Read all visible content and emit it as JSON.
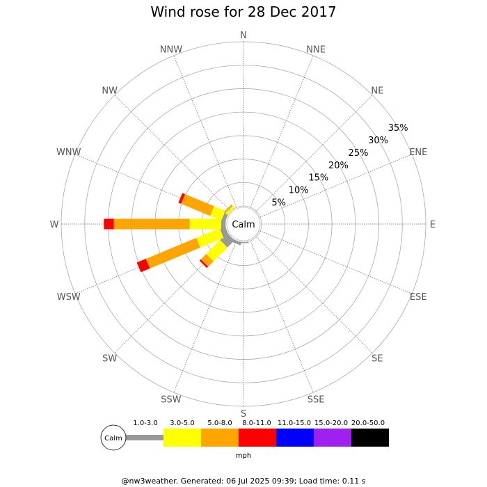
{
  "title": "Wind rose for 28 Dec 2017",
  "footer": "@nw3weather. Generated: 06 Jul 2025 09:39; Load time: 0.11 s",
  "chart_data": {
    "type": "windrose",
    "title": "Wind rose for 28 Dec 2017",
    "directions": [
      "N",
      "NNE",
      "NE",
      "ENE",
      "E",
      "ESE",
      "SE",
      "SSE",
      "S",
      "SSW",
      "SW",
      "WSW",
      "W",
      "WNW",
      "NW",
      "NNW"
    ],
    "ring_labels": [
      "5%",
      "10%",
      "15%",
      "20%",
      "25%",
      "30%",
      "35%"
    ],
    "rmax_percent": 35,
    "calm_label": "Calm",
    "speed_unit": "mph",
    "bins": [
      {
        "label": "1.0-3.0",
        "color": "#999999"
      },
      {
        "label": "3.0-5.0",
        "color": "#ffff00"
      },
      {
        "label": "5.0-8.0",
        "color": "#ffa500"
      },
      {
        "label": "8.0-11.0",
        "color": "#ff0000"
      },
      {
        "label": "11.0-15.0",
        "color": "#0000ff"
      },
      {
        "label": "15.0-20.0",
        "color": "#a020f0"
      },
      {
        "label": "20.0-50.0",
        "color": "#000000"
      }
    ],
    "series": [
      {
        "direction": "N",
        "values": [
          0,
          0,
          0,
          0,
          0,
          0,
          0
        ]
      },
      {
        "direction": "NNE",
        "values": [
          0,
          0,
          0,
          0,
          0,
          0,
          0
        ]
      },
      {
        "direction": "NE",
        "values": [
          0,
          0,
          0,
          0,
          0,
          0,
          0
        ]
      },
      {
        "direction": "ENE",
        "values": [
          0,
          0,
          0,
          0,
          0,
          0,
          0
        ]
      },
      {
        "direction": "E",
        "values": [
          0,
          0,
          0,
          0,
          0,
          0,
          0
        ]
      },
      {
        "direction": "ESE",
        "values": [
          0,
          0,
          0,
          0,
          0,
          0,
          0
        ]
      },
      {
        "direction": "SE",
        "values": [
          0,
          0,
          0,
          0,
          0,
          0,
          0
        ]
      },
      {
        "direction": "SSE",
        "values": [
          0,
          0,
          0,
          0,
          0,
          0,
          0
        ]
      },
      {
        "direction": "S",
        "values": [
          0.2,
          0,
          0,
          0,
          0,
          0,
          0
        ]
      },
      {
        "direction": "SSW",
        "values": [
          0.6,
          0,
          0,
          0,
          0,
          0,
          0
        ]
      },
      {
        "direction": "SW",
        "values": [
          2.1,
          4.2,
          1.6,
          0.4,
          0,
          0,
          0
        ]
      },
      {
        "direction": "WSW",
        "values": [
          1.2,
          5.4,
          11.6,
          2.1,
          0,
          0,
          0
        ]
      },
      {
        "direction": "W",
        "values": [
          0.9,
          6.7,
          16.2,
          2.1,
          0,
          0,
          0
        ]
      },
      {
        "direction": "WNW",
        "values": [
          0.8,
          2.6,
          6.7,
          0.6,
          0,
          0,
          0
        ]
      },
      {
        "direction": "NW",
        "values": [
          0,
          0.5,
          0.4,
          0,
          0,
          0,
          0
        ]
      },
      {
        "direction": "NNW",
        "values": [
          0,
          0,
          0,
          0,
          0,
          0,
          0
        ]
      }
    ]
  }
}
